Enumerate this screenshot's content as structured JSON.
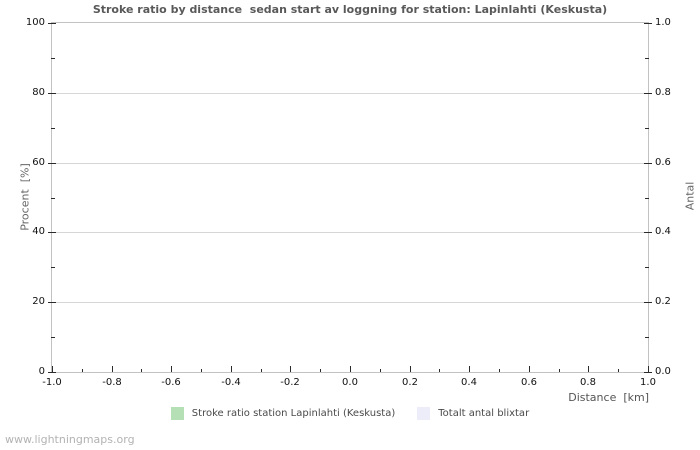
{
  "page": {
    "watermark": "www.lightningmaps.org"
  },
  "chart_data": {
    "type": "line",
    "title": "Stroke ratio by distance  sedan start av loggning for station: Lapinlahti (Keskusta)",
    "xlabel": "Distance  [km]",
    "ylabel_left": "Procent  [%]",
    "ylabel_right": "Antal",
    "xlim": [
      -1.0,
      1.0
    ],
    "ylim_left": [
      0,
      100
    ],
    "ylim_right": [
      0.0,
      1.0
    ],
    "x_ticks": [
      "-1.0",
      "-0.8",
      "-0.6",
      "-0.4",
      "-0.2",
      "0.0",
      "0.2",
      "0.4",
      "0.6",
      "0.8",
      "1.0"
    ],
    "y_ticks_left": [
      "100",
      "80",
      "60",
      "40",
      "20",
      "0"
    ],
    "y_ticks_right": [
      "1.0",
      "0.8",
      "0.6",
      "0.4",
      "0.2",
      "0.0"
    ],
    "grid": "horizontal-major-only",
    "legend_position": "bottom-center",
    "plot_border_color": "#c2c2c2",
    "gridline_color": "#d6d6d6",
    "series": [
      {
        "name": "Stroke ratio station Lapinlahti (Keskusta)",
        "color": "#b5dfb5",
        "x": [],
        "values": []
      },
      {
        "name": "Totalt antal blixtar",
        "color": "#ededfa",
        "x": [],
        "values": []
      }
    ]
  }
}
